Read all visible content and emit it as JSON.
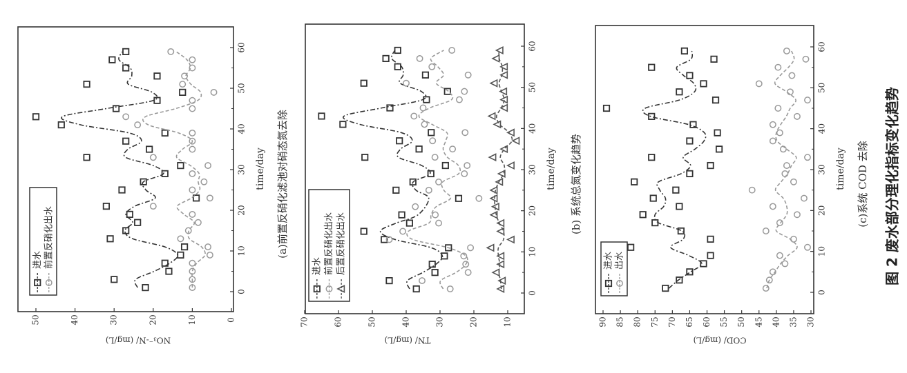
{
  "figure_title": "图 2  废水部分理化指标变化趋势",
  "colors": {
    "influent": "#333333",
    "pre_denit": "#999999",
    "post_denit": "#555555"
  },
  "chart_data": [
    {
      "type": "scatter",
      "orientation": "rotated-90-ccw",
      "caption": "(a)前置反硝化滤池对硝态氮去除",
      "xlabel": "time/day",
      "ylabel": "NO₃⁻-N/ (mg/L)",
      "xlim": [
        -5,
        65
      ],
      "ylim": [
        0,
        55
      ],
      "xticks": [
        0,
        10,
        20,
        30,
        40,
        50,
        60
      ],
      "yticks": [
        0,
        10,
        20,
        30,
        40,
        50
      ],
      "legend_placement": "top-left",
      "x": [
        1,
        3,
        5,
        7,
        9,
        11,
        13,
        15,
        17,
        19,
        21,
        23,
        25,
        27,
        29,
        31,
        33,
        35,
        37,
        39,
        41,
        43,
        45,
        47,
        49,
        51,
        53,
        55,
        57,
        59
      ],
      "series": [
        {
          "name": "进水",
          "marker": "square",
          "values": [
            22,
            30,
            16,
            17,
            13,
            12,
            31,
            27,
            24,
            26,
            32,
            9,
            28,
            22.5,
            17,
            13,
            37,
            21,
            27,
            17,
            43.5,
            50,
            29.5,
            19,
            12.5,
            37,
            19,
            27,
            30.5,
            27
          ]
        },
        {
          "name": "前置反硝化出水",
          "marker": "circle",
          "values": [
            10,
            10,
            10,
            10,
            5.5,
            6,
            13,
            11,
            8.5,
            10,
            20,
            5.5,
            10,
            7,
            10,
            6,
            20,
            10,
            10,
            10,
            24,
            27,
            10,
            10,
            4.5,
            12.5,
            12,
            10,
            10,
            15.5
          ]
        }
      ]
    },
    {
      "type": "scatter",
      "orientation": "rotated-90-ccw",
      "caption": "(b) 系统总氮变化趋势",
      "xlabel": "time/day",
      "ylabel": "TN/ (mg/L)",
      "xlim": [
        -5,
        65
      ],
      "ylim": [
        5,
        70
      ],
      "xticks": [
        0,
        10,
        20,
        30,
        40,
        50,
        60
      ],
      "yticks": [
        10,
        20,
        30,
        40,
        50,
        60,
        70
      ],
      "legend_placement": "top-left",
      "x": [
        1,
        3,
        5,
        7,
        9,
        11,
        13,
        15,
        17,
        19,
        21,
        23,
        25,
        27,
        29,
        31,
        33,
        35,
        37,
        39,
        41,
        43,
        45,
        47,
        49,
        51,
        53,
        55,
        57,
        59
      ],
      "series": [
        {
          "name": "进水",
          "marker": "square",
          "values": [
            37,
            45,
            31.5,
            32.3,
            28.7,
            27.5,
            46.5,
            52.5,
            39,
            41.3,
            null,
            24.5,
            43,
            38,
            32.7,
            28.4,
            52.2,
            36.2,
            42,
            32.6,
            58.7,
            65,
            44.8,
            34,
            27.8,
            52.5,
            34.3,
            42.5,
            46,
            42.5
          ]
        },
        {
          "name": "前置反硝化出水",
          "marker": "circle",
          "values": [
            27,
            35.3,
            21.7,
            22.4,
            23,
            21,
            45,
            41,
            30.4,
            31.4,
            37.3,
            18.5,
            33.3,
            30.4,
            22.8,
            22,
            31.5,
            26.3,
            32.2,
            22.6,
            34.6,
            37.7,
            35,
            24.3,
            22.8,
            40,
            21.7,
            32.4,
            36,
            26.5
          ]
        },
        {
          "name": "后置反硝化出水",
          "marker": "triangle",
          "values": [
            12,
            11.6,
            13.4,
            12,
            12,
            15,
            9,
            12,
            12,
            14,
            13.5,
            14,
            14,
            12.4,
            11.7,
            9,
            14.4,
            11,
            7.5,
            9,
            13,
            14.6,
            11,
            11,
            11.2,
            14,
            11,
            11,
            13.4,
            12.3
          ]
        }
      ]
    },
    {
      "type": "scatter",
      "orientation": "rotated-90-ccw",
      "caption": "(c)系统 COD 去除",
      "xlabel": "time/day",
      "ylabel": "COD/ (mg/L)",
      "xlim": [
        -5,
        65
      ],
      "ylim": [
        30,
        92
      ],
      "xticks": [
        0,
        10,
        20,
        30,
        40,
        50,
        60
      ],
      "yticks": [
        30,
        35,
        40,
        45,
        50,
        55,
        60,
        65,
        70,
        75,
        80,
        85,
        90
      ],
      "legend_placement": "top-left",
      "x": [
        1,
        3,
        5,
        7,
        9,
        11,
        13,
        15,
        17,
        19,
        21,
        23,
        25,
        27,
        29,
        31,
        33,
        35,
        37,
        39,
        41,
        43,
        45,
        47,
        49,
        51,
        53,
        55,
        57,
        59
      ],
      "series": [
        {
          "name": "进水",
          "marker": "square",
          "values": [
            72,
            68,
            65,
            61,
            59,
            82,
            59,
            67.5,
            75,
            78.5,
            68,
            75.5,
            69,
            81,
            65,
            59,
            76,
            56.5,
            65,
            57,
            64,
            76,
            89,
            57.5,
            68,
            61,
            65,
            76,
            58,
            66.5
          ]
        },
        {
          "name": "出水",
          "marker": "circle",
          "values": [
            43,
            42,
            41,
            37.5,
            39,
            31,
            35,
            43,
            39,
            34,
            41,
            32,
            47,
            35,
            37.5,
            37,
            31,
            38,
            41,
            39,
            41,
            34,
            39.5,
            31,
            36,
            45,
            35.5,
            39.5,
            31.5,
            37
          ]
        }
      ]
    }
  ]
}
